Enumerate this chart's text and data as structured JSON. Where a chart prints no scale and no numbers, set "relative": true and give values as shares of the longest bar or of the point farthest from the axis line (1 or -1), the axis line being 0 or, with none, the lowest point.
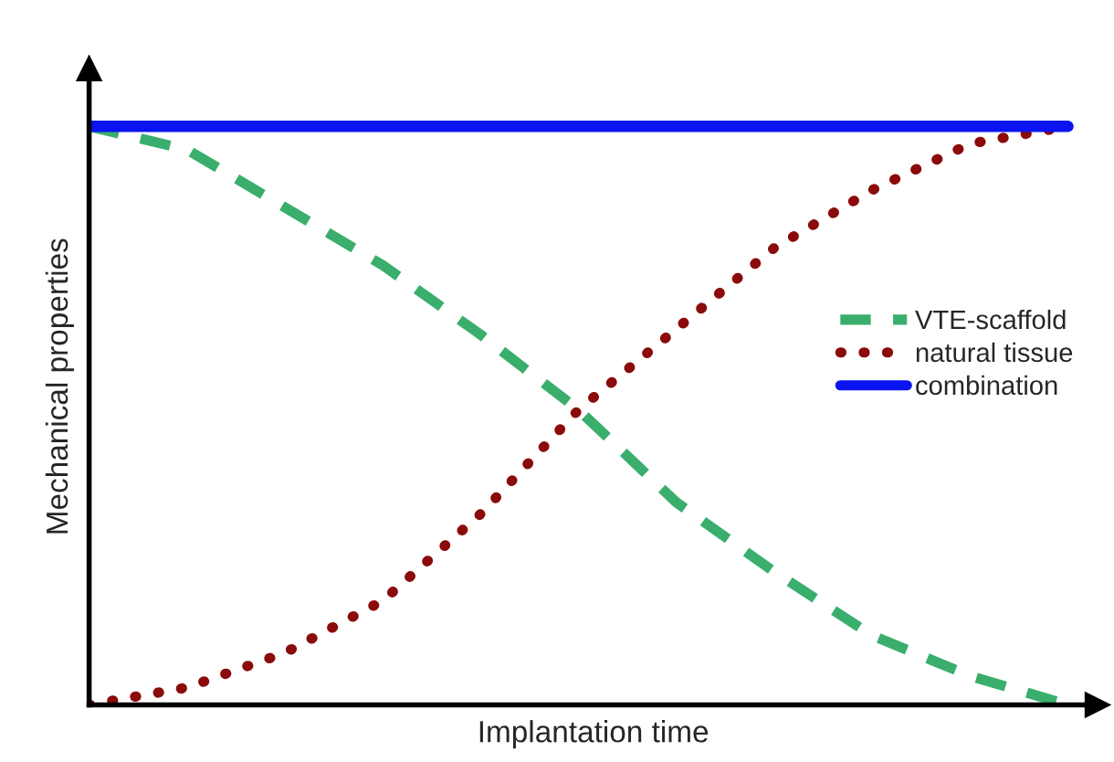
{
  "chart_data": {
    "type": "line",
    "relative": true,
    "xlabel": "Implantation time",
    "ylabel": "Mechanical properties",
    "categories": [
      null,
      null,
      null,
      null,
      null,
      null,
      null,
      null,
      null,
      null,
      null
    ],
    "legend": "right",
    "grid": false,
    "tick_labels": false,
    "marker": "none",
    "series": [
      {
        "name": "VTE-scaffold",
        "color": "#3aae6c",
        "line_style": "dashed",
        "values": [
          1.0,
          0.96,
          0.86,
          0.76,
          0.64,
          0.51,
          0.35,
          0.23,
          0.12,
          0.05,
          0.0
        ]
      },
      {
        "name": "natural tissue",
        "color": "#8b0a0a",
        "line_style": "dotted",
        "values": [
          0.0,
          0.03,
          0.09,
          0.18,
          0.33,
          0.51,
          0.65,
          0.79,
          0.89,
          0.97,
          1.0
        ]
      },
      {
        "name": "combination",
        "color": "#0a14f0",
        "line_style": "solid",
        "values": [
          1.0,
          1.0,
          1.0,
          1.0,
          1.0,
          1.0,
          1.0,
          1.0,
          1.0,
          1.0,
          1.0
        ]
      }
    ]
  }
}
